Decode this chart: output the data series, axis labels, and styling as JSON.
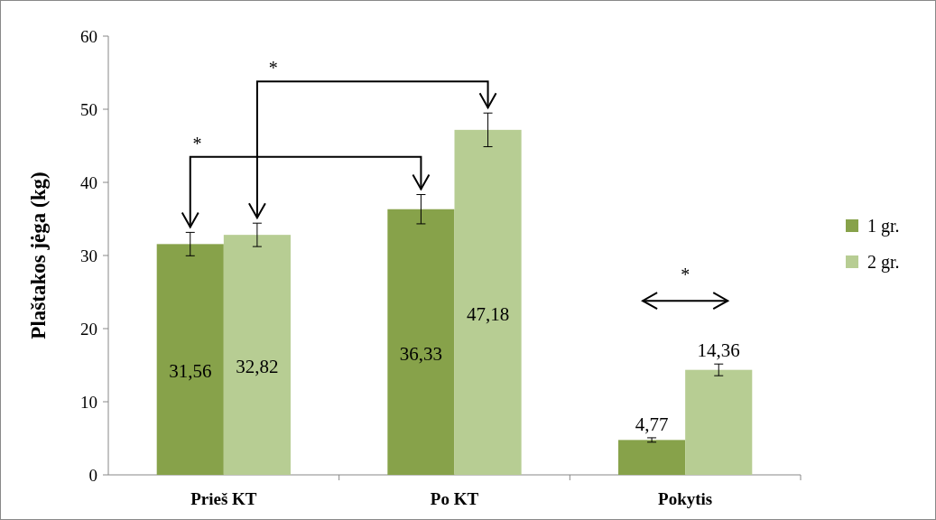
{
  "chart_data": {
    "type": "bar",
    "ylabel": "Plaštakos jėga (kg)",
    "categories": [
      "Prieš KT",
      "Po KT",
      "Pokytis"
    ],
    "series": [
      {
        "name": "1 gr.",
        "color": "#87a24a",
        "values": [
          31.56,
          36.33,
          4.77
        ],
        "value_labels": [
          "31,56",
          "36,33",
          "4,77"
        ],
        "errors": [
          1.6,
          2,
          0.3
        ]
      },
      {
        "name": "2 gr.",
        "color": "#b7cd93",
        "values": [
          32.82,
          47.18,
          14.36
        ],
        "value_labels": [
          "32,82",
          "47,18",
          "14,36"
        ],
        "errors": [
          1.6,
          2.3,
          0.8
        ]
      }
    ],
    "ylim": [
      0,
      60
    ],
    "yticks": [
      0,
      10,
      20,
      30,
      40,
      50,
      60
    ],
    "legend": "right",
    "annotations": [
      "*",
      "*",
      "*"
    ]
  }
}
